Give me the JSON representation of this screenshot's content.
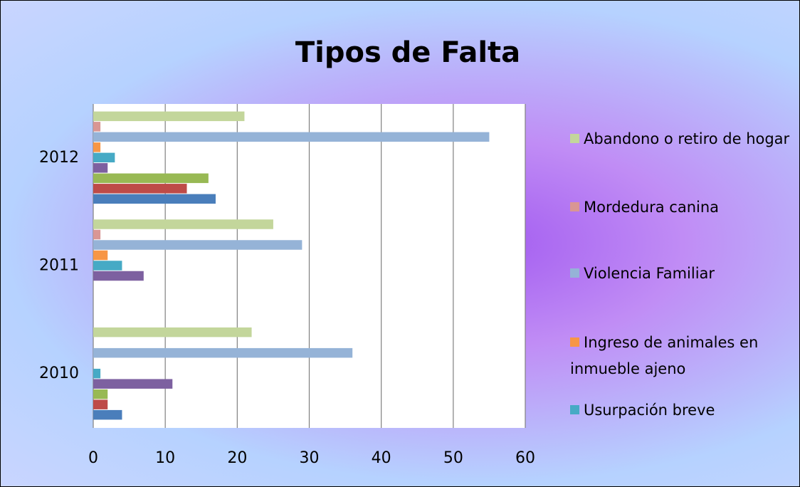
{
  "chart_data": {
    "type": "hbar",
    "title": "Tipos de Falta",
    "categories": [
      "2010",
      "2011",
      "2012"
    ],
    "series": [
      {
        "color": "#4a7ebb",
        "values": [
          4,
          0,
          17
        ]
      },
      {
        "color": "#be4b48",
        "values": [
          2,
          0,
          13
        ]
      },
      {
        "color": "#98b954",
        "values": [
          2,
          0,
          16
        ]
      },
      {
        "color": "#7d60a0",
        "values": [
          11,
          7,
          2
        ]
      },
      {
        "name": "Usurpación breve",
        "color": "#46aac5",
        "values": [
          1,
          4,
          3
        ]
      },
      {
        "name": "Ingreso de animales en inmueble ajeno",
        "color": "#f79646",
        "values": [
          0,
          2,
          1
        ]
      },
      {
        "name": "Violencia Familiar",
        "color": "#95b3d7",
        "values": [
          36,
          29,
          55
        ]
      },
      {
        "name": "Mordedura canina",
        "color": "#d99694",
        "values": [
          0,
          1,
          1
        ]
      },
      {
        "name": "Abandono o retiro de hogar",
        "color": "#c3d69b",
        "values": [
          22,
          25,
          21
        ]
      }
    ],
    "xlim": [
      0,
      60
    ],
    "xticks": [
      0,
      10,
      20,
      30,
      40,
      50,
      60
    ],
    "grid": true,
    "legend": "right"
  }
}
